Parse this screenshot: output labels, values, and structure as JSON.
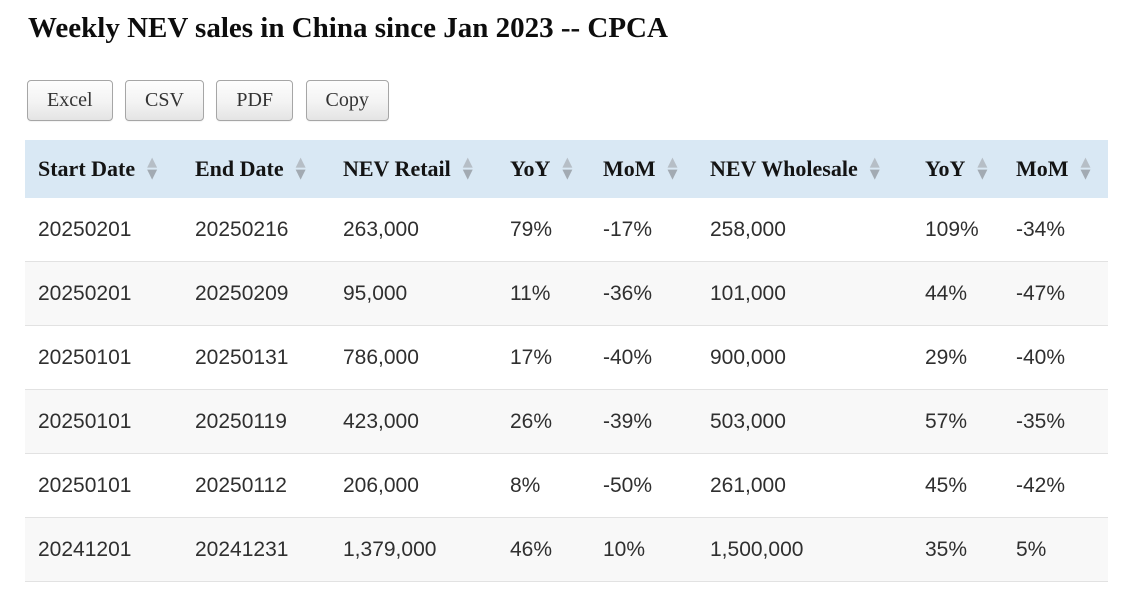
{
  "page": {
    "title": "Weekly NEV sales in China since Jan 2023 -- CPCA"
  },
  "toolbar": {
    "buttons": [
      {
        "key": "excel",
        "label": "Excel"
      },
      {
        "key": "csv",
        "label": "CSV"
      },
      {
        "key": "pdf",
        "label": "PDF"
      },
      {
        "key": "copy",
        "label": "Copy"
      }
    ]
  },
  "table": {
    "columns": [
      {
        "key": "start-date",
        "label": "Start Date",
        "sort_icon": "sort-both-icon"
      },
      {
        "key": "end-date",
        "label": "End Date",
        "sort_icon": "sort-both-icon"
      },
      {
        "key": "nev-retail",
        "label": "NEV Retail",
        "sort_icon": "sort-both-icon"
      },
      {
        "key": "retail-yoy",
        "label": "YoY",
        "sort_icon": "sort-both-icon"
      },
      {
        "key": "retail-mom",
        "label": "MoM",
        "sort_icon": "sort-both-icon"
      },
      {
        "key": "nev-wholesale",
        "label": "NEV Wholesale",
        "sort_icon": "sort-both-icon"
      },
      {
        "key": "wholesale-yoy",
        "label": "YoY",
        "sort_icon": "sort-both-icon"
      },
      {
        "key": "wholesale-mom",
        "label": "MoM",
        "sort_icon": "sort-both-icon"
      }
    ],
    "rows": [
      [
        "20250201",
        "20250216",
        "263,000",
        "79%",
        "-17%",
        "258,000",
        "109%",
        "-34%"
      ],
      [
        "20250201",
        "20250209",
        "95,000",
        "11%",
        "-36%",
        "101,000",
        "44%",
        "-47%"
      ],
      [
        "20250101",
        "20250131",
        "786,000",
        "17%",
        "-40%",
        "900,000",
        "29%",
        "-40%"
      ],
      [
        "20250101",
        "20250119",
        "423,000",
        "26%",
        "-39%",
        "503,000",
        "57%",
        "-35%"
      ],
      [
        "20250101",
        "20250112",
        "206,000",
        "8%",
        "-50%",
        "261,000",
        "45%",
        "-42%"
      ],
      [
        "20241201",
        "20241231",
        "1,379,000",
        "46%",
        "10%",
        "1,500,000",
        "35%",
        "5%"
      ]
    ]
  },
  "colors": {
    "header_bg": "#d9e8f4",
    "stripe_bg": "#f8f8f8",
    "row_border": "#e2e2e2",
    "sort_arrow_up": "#b6bec6",
    "sort_arrow_down": "#a2aab2"
  },
  "icons": {
    "sort_up_glyph": "▲",
    "sort_down_glyph": "▼"
  }
}
